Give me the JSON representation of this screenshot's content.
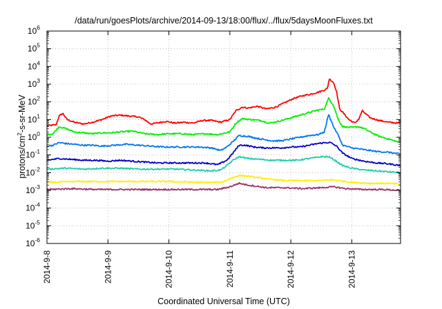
{
  "chart_data": {
    "type": "line",
    "title": "/data/run/goesPlots/archive/2014-09-13/18:00/flux/../flux/5daysMoonFluxes.txt",
    "xlabel": "Coordinated Universal Time (UTC)",
    "ylabel": {
      "pre": "protons/cm",
      "sup": "2",
      "post": "-s-sr-MeV"
    },
    "x_ticks": [
      "2014-9-8",
      "2014-9-9",
      "2014-9-10",
      "2014-9-11",
      "2014-9-12",
      "2014-9-13"
    ],
    "y_scale": "log",
    "y_ticks": [
      {
        "base": "10",
        "exp": "-6"
      },
      {
        "base": "10",
        "exp": "-5"
      },
      {
        "base": "10",
        "exp": "-4"
      },
      {
        "base": "10",
        "exp": "-3"
      },
      {
        "base": "10",
        "exp": "-2"
      },
      {
        "base": "10",
        "exp": "-1"
      },
      {
        "base": "10",
        "exp": "0"
      },
      {
        "base": "10",
        "exp": "1"
      },
      {
        "base": "10",
        "exp": "2"
      },
      {
        "base": "10",
        "exp": "3"
      },
      {
        "base": "10",
        "exp": "4"
      },
      {
        "base": "10",
        "exp": "5"
      },
      {
        "base": "10",
        "exp": "6"
      }
    ],
    "xlim_days": [
      0,
      5.8
    ],
    "ylim_log10": [
      -6,
      6
    ],
    "grid": true,
    "series": [
      {
        "color": "#ff0000",
        "log_points": [
          [
            0.0,
            0.65
          ],
          [
            0.15,
            0.7
          ],
          [
            0.2,
            1.2
          ],
          [
            0.26,
            1.35
          ],
          [
            0.33,
            1.0
          ],
          [
            0.45,
            0.85
          ],
          [
            0.6,
            0.75
          ],
          [
            0.75,
            0.85
          ],
          [
            0.9,
            1.0
          ],
          [
            1.05,
            1.2
          ],
          [
            1.2,
            1.25
          ],
          [
            1.35,
            1.2
          ],
          [
            1.5,
            1.15
          ],
          [
            1.6,
            1.0
          ],
          [
            1.7,
            0.75
          ],
          [
            1.8,
            0.8
          ],
          [
            1.95,
            0.9
          ],
          [
            2.1,
            0.8
          ],
          [
            2.25,
            0.85
          ],
          [
            2.4,
            0.8
          ],
          [
            2.55,
            0.95
          ],
          [
            2.7,
            0.95
          ],
          [
            2.85,
            0.85
          ],
          [
            3.0,
            1.0
          ],
          [
            3.1,
            1.5
          ],
          [
            3.2,
            1.7
          ],
          [
            3.3,
            1.65
          ],
          [
            3.45,
            1.75
          ],
          [
            3.6,
            1.6
          ],
          [
            3.75,
            1.7
          ],
          [
            3.9,
            1.95
          ],
          [
            4.05,
            2.2
          ],
          [
            4.2,
            2.35
          ],
          [
            4.35,
            2.45
          ],
          [
            4.5,
            2.6
          ],
          [
            4.6,
            2.75
          ],
          [
            4.63,
            3.3
          ],
          [
            4.7,
            3.1
          ],
          [
            4.75,
            2.6
          ],
          [
            4.8,
            1.6
          ],
          [
            4.88,
            1.3
          ],
          [
            4.95,
            1.0
          ],
          [
            5.05,
            0.8
          ],
          [
            5.12,
            1.05
          ],
          [
            5.17,
            1.5
          ],
          [
            5.3,
            1.1
          ],
          [
            5.45,
            0.95
          ],
          [
            5.6,
            0.85
          ],
          [
            5.75,
            0.8
          ],
          [
            5.8,
            0.85
          ]
        ]
      },
      {
        "color": "#00ee00",
        "log_points": [
          [
            0.0,
            0.15
          ],
          [
            0.1,
            0.2
          ],
          [
            0.2,
            0.6
          ],
          [
            0.3,
            0.5
          ],
          [
            0.45,
            0.3
          ],
          [
            0.6,
            0.25
          ],
          [
            0.75,
            0.2
          ],
          [
            0.9,
            0.25
          ],
          [
            1.05,
            0.25
          ],
          [
            1.2,
            0.3
          ],
          [
            1.4,
            0.35
          ],
          [
            1.6,
            0.2
          ],
          [
            1.8,
            0.15
          ],
          [
            2.0,
            0.2
          ],
          [
            2.2,
            0.2
          ],
          [
            2.4,
            0.15
          ],
          [
            2.6,
            0.2
          ],
          [
            2.8,
            0.15
          ],
          [
            3.0,
            0.3
          ],
          [
            3.1,
            0.8
          ],
          [
            3.2,
            1.05
          ],
          [
            3.35,
            1.0
          ],
          [
            3.5,
            0.95
          ],
          [
            3.65,
            0.8
          ],
          [
            3.8,
            0.9
          ],
          [
            3.95,
            1.05
          ],
          [
            4.1,
            1.2
          ],
          [
            4.25,
            1.35
          ],
          [
            4.4,
            1.5
          ],
          [
            4.55,
            1.6
          ],
          [
            4.62,
            2.2
          ],
          [
            4.7,
            1.8
          ],
          [
            4.78,
            1.0
          ],
          [
            4.85,
            0.6
          ],
          [
            5.0,
            0.55
          ],
          [
            5.1,
            0.6
          ],
          [
            5.2,
            0.5
          ],
          [
            5.3,
            0.3
          ],
          [
            5.45,
            0.05
          ],
          [
            5.6,
            -0.1
          ],
          [
            5.8,
            -0.3
          ]
        ]
      },
      {
        "color": "#0077ee",
        "log_points": [
          [
            0.0,
            -0.5
          ],
          [
            0.1,
            -0.45
          ],
          [
            0.2,
            -0.3
          ],
          [
            0.3,
            -0.35
          ],
          [
            0.45,
            -0.4
          ],
          [
            0.6,
            -0.45
          ],
          [
            0.75,
            -0.45
          ],
          [
            0.9,
            -0.5
          ],
          [
            1.1,
            -0.45
          ],
          [
            1.3,
            -0.4
          ],
          [
            1.5,
            -0.45
          ],
          [
            1.7,
            -0.5
          ],
          [
            1.9,
            -0.55
          ],
          [
            2.1,
            -0.55
          ],
          [
            2.3,
            -0.55
          ],
          [
            2.5,
            -0.55
          ],
          [
            2.7,
            -0.6
          ],
          [
            2.85,
            -0.75
          ],
          [
            2.95,
            -0.55
          ],
          [
            3.05,
            -0.25
          ],
          [
            3.15,
            0.1
          ],
          [
            3.3,
            0.05
          ],
          [
            3.5,
            -0.1
          ],
          [
            3.7,
            -0.2
          ],
          [
            3.85,
            -0.2
          ],
          [
            4.0,
            -0.1
          ],
          [
            4.15,
            0.0
          ],
          [
            4.3,
            0.1
          ],
          [
            4.45,
            0.15
          ],
          [
            4.55,
            0.3
          ],
          [
            4.62,
            1.3
          ],
          [
            4.7,
            0.6
          ],
          [
            4.78,
            0.1
          ],
          [
            4.85,
            -0.45
          ],
          [
            5.0,
            -0.6
          ],
          [
            5.2,
            -0.7
          ],
          [
            5.4,
            -0.8
          ],
          [
            5.6,
            -0.85
          ],
          [
            5.8,
            -0.95
          ]
        ]
      },
      {
        "color": "#0000cc",
        "log_points": [
          [
            0.0,
            -1.3
          ],
          [
            0.2,
            -1.2
          ],
          [
            0.4,
            -1.25
          ],
          [
            0.6,
            -1.3
          ],
          [
            0.8,
            -1.3
          ],
          [
            1.0,
            -1.35
          ],
          [
            1.2,
            -1.3
          ],
          [
            1.4,
            -1.35
          ],
          [
            1.6,
            -1.4
          ],
          [
            1.8,
            -1.45
          ],
          [
            2.0,
            -1.45
          ],
          [
            2.2,
            -1.45
          ],
          [
            2.4,
            -1.45
          ],
          [
            2.6,
            -1.45
          ],
          [
            2.8,
            -1.55
          ],
          [
            2.95,
            -1.3
          ],
          [
            3.05,
            -0.9
          ],
          [
            3.15,
            -0.45
          ],
          [
            3.25,
            -0.45
          ],
          [
            3.4,
            -0.55
          ],
          [
            3.55,
            -0.6
          ],
          [
            3.7,
            -0.6
          ],
          [
            3.85,
            -0.6
          ],
          [
            4.0,
            -0.55
          ],
          [
            4.15,
            -0.55
          ],
          [
            4.3,
            -0.45
          ],
          [
            4.45,
            -0.35
          ],
          [
            4.58,
            -0.3
          ],
          [
            4.65,
            -0.3
          ],
          [
            4.75,
            -0.5
          ],
          [
            4.85,
            -0.9
          ],
          [
            5.0,
            -1.2
          ],
          [
            5.2,
            -1.35
          ],
          [
            5.4,
            -1.45
          ],
          [
            5.6,
            -1.5
          ],
          [
            5.8,
            -1.6
          ]
        ]
      },
      {
        "color": "#22ccaa",
        "log_points": [
          [
            0.0,
            -1.8
          ],
          [
            0.3,
            -1.75
          ],
          [
            0.6,
            -1.8
          ],
          [
            0.9,
            -1.75
          ],
          [
            1.2,
            -1.75
          ],
          [
            1.5,
            -1.8
          ],
          [
            1.8,
            -1.8
          ],
          [
            2.1,
            -1.8
          ],
          [
            2.4,
            -1.85
          ],
          [
            2.7,
            -1.9
          ],
          [
            2.85,
            -1.85
          ],
          [
            2.95,
            -1.6
          ],
          [
            3.05,
            -1.3
          ],
          [
            3.15,
            -1.1
          ],
          [
            3.3,
            -1.2
          ],
          [
            3.5,
            -1.25
          ],
          [
            3.7,
            -1.3
          ],
          [
            3.9,
            -1.3
          ],
          [
            4.1,
            -1.3
          ],
          [
            4.3,
            -1.2
          ],
          [
            4.5,
            -1.1
          ],
          [
            4.62,
            -1.1
          ],
          [
            4.7,
            -1.25
          ],
          [
            4.85,
            -1.6
          ],
          [
            5.0,
            -1.75
          ],
          [
            5.2,
            -1.85
          ],
          [
            5.4,
            -1.9
          ],
          [
            5.6,
            -1.95
          ],
          [
            5.8,
            -2.0
          ]
        ]
      },
      {
        "color": "#ffee00",
        "log_points": [
          [
            0.0,
            -2.55
          ],
          [
            0.5,
            -2.5
          ],
          [
            1.0,
            -2.5
          ],
          [
            1.5,
            -2.5
          ],
          [
            2.0,
            -2.5
          ],
          [
            2.5,
            -2.55
          ],
          [
            2.85,
            -2.55
          ],
          [
            3.0,
            -2.35
          ],
          [
            3.15,
            -2.15
          ],
          [
            3.3,
            -2.2
          ],
          [
            3.6,
            -2.35
          ],
          [
            3.9,
            -2.45
          ],
          [
            4.2,
            -2.45
          ],
          [
            4.5,
            -2.45
          ],
          [
            4.65,
            -2.4
          ],
          [
            4.8,
            -2.45
          ],
          [
            5.0,
            -2.55
          ],
          [
            5.3,
            -2.6
          ],
          [
            5.6,
            -2.6
          ],
          [
            5.8,
            -2.65
          ]
        ]
      },
      {
        "color": "#993366",
        "log_points": [
          [
            0.0,
            -2.95
          ],
          [
            0.4,
            -2.9
          ],
          [
            0.8,
            -2.95
          ],
          [
            1.2,
            -2.95
          ],
          [
            1.6,
            -2.95
          ],
          [
            2.0,
            -2.95
          ],
          [
            2.4,
            -2.95
          ],
          [
            2.8,
            -2.95
          ],
          [
            3.0,
            -2.8
          ],
          [
            3.15,
            -2.6
          ],
          [
            3.3,
            -2.7
          ],
          [
            3.6,
            -2.85
          ],
          [
            3.9,
            -2.85
          ],
          [
            4.2,
            -2.9
          ],
          [
            4.5,
            -2.85
          ],
          [
            4.7,
            -2.8
          ],
          [
            4.9,
            -2.9
          ],
          [
            5.2,
            -2.95
          ],
          [
            5.5,
            -2.95
          ],
          [
            5.8,
            -3.0
          ]
        ]
      }
    ]
  }
}
